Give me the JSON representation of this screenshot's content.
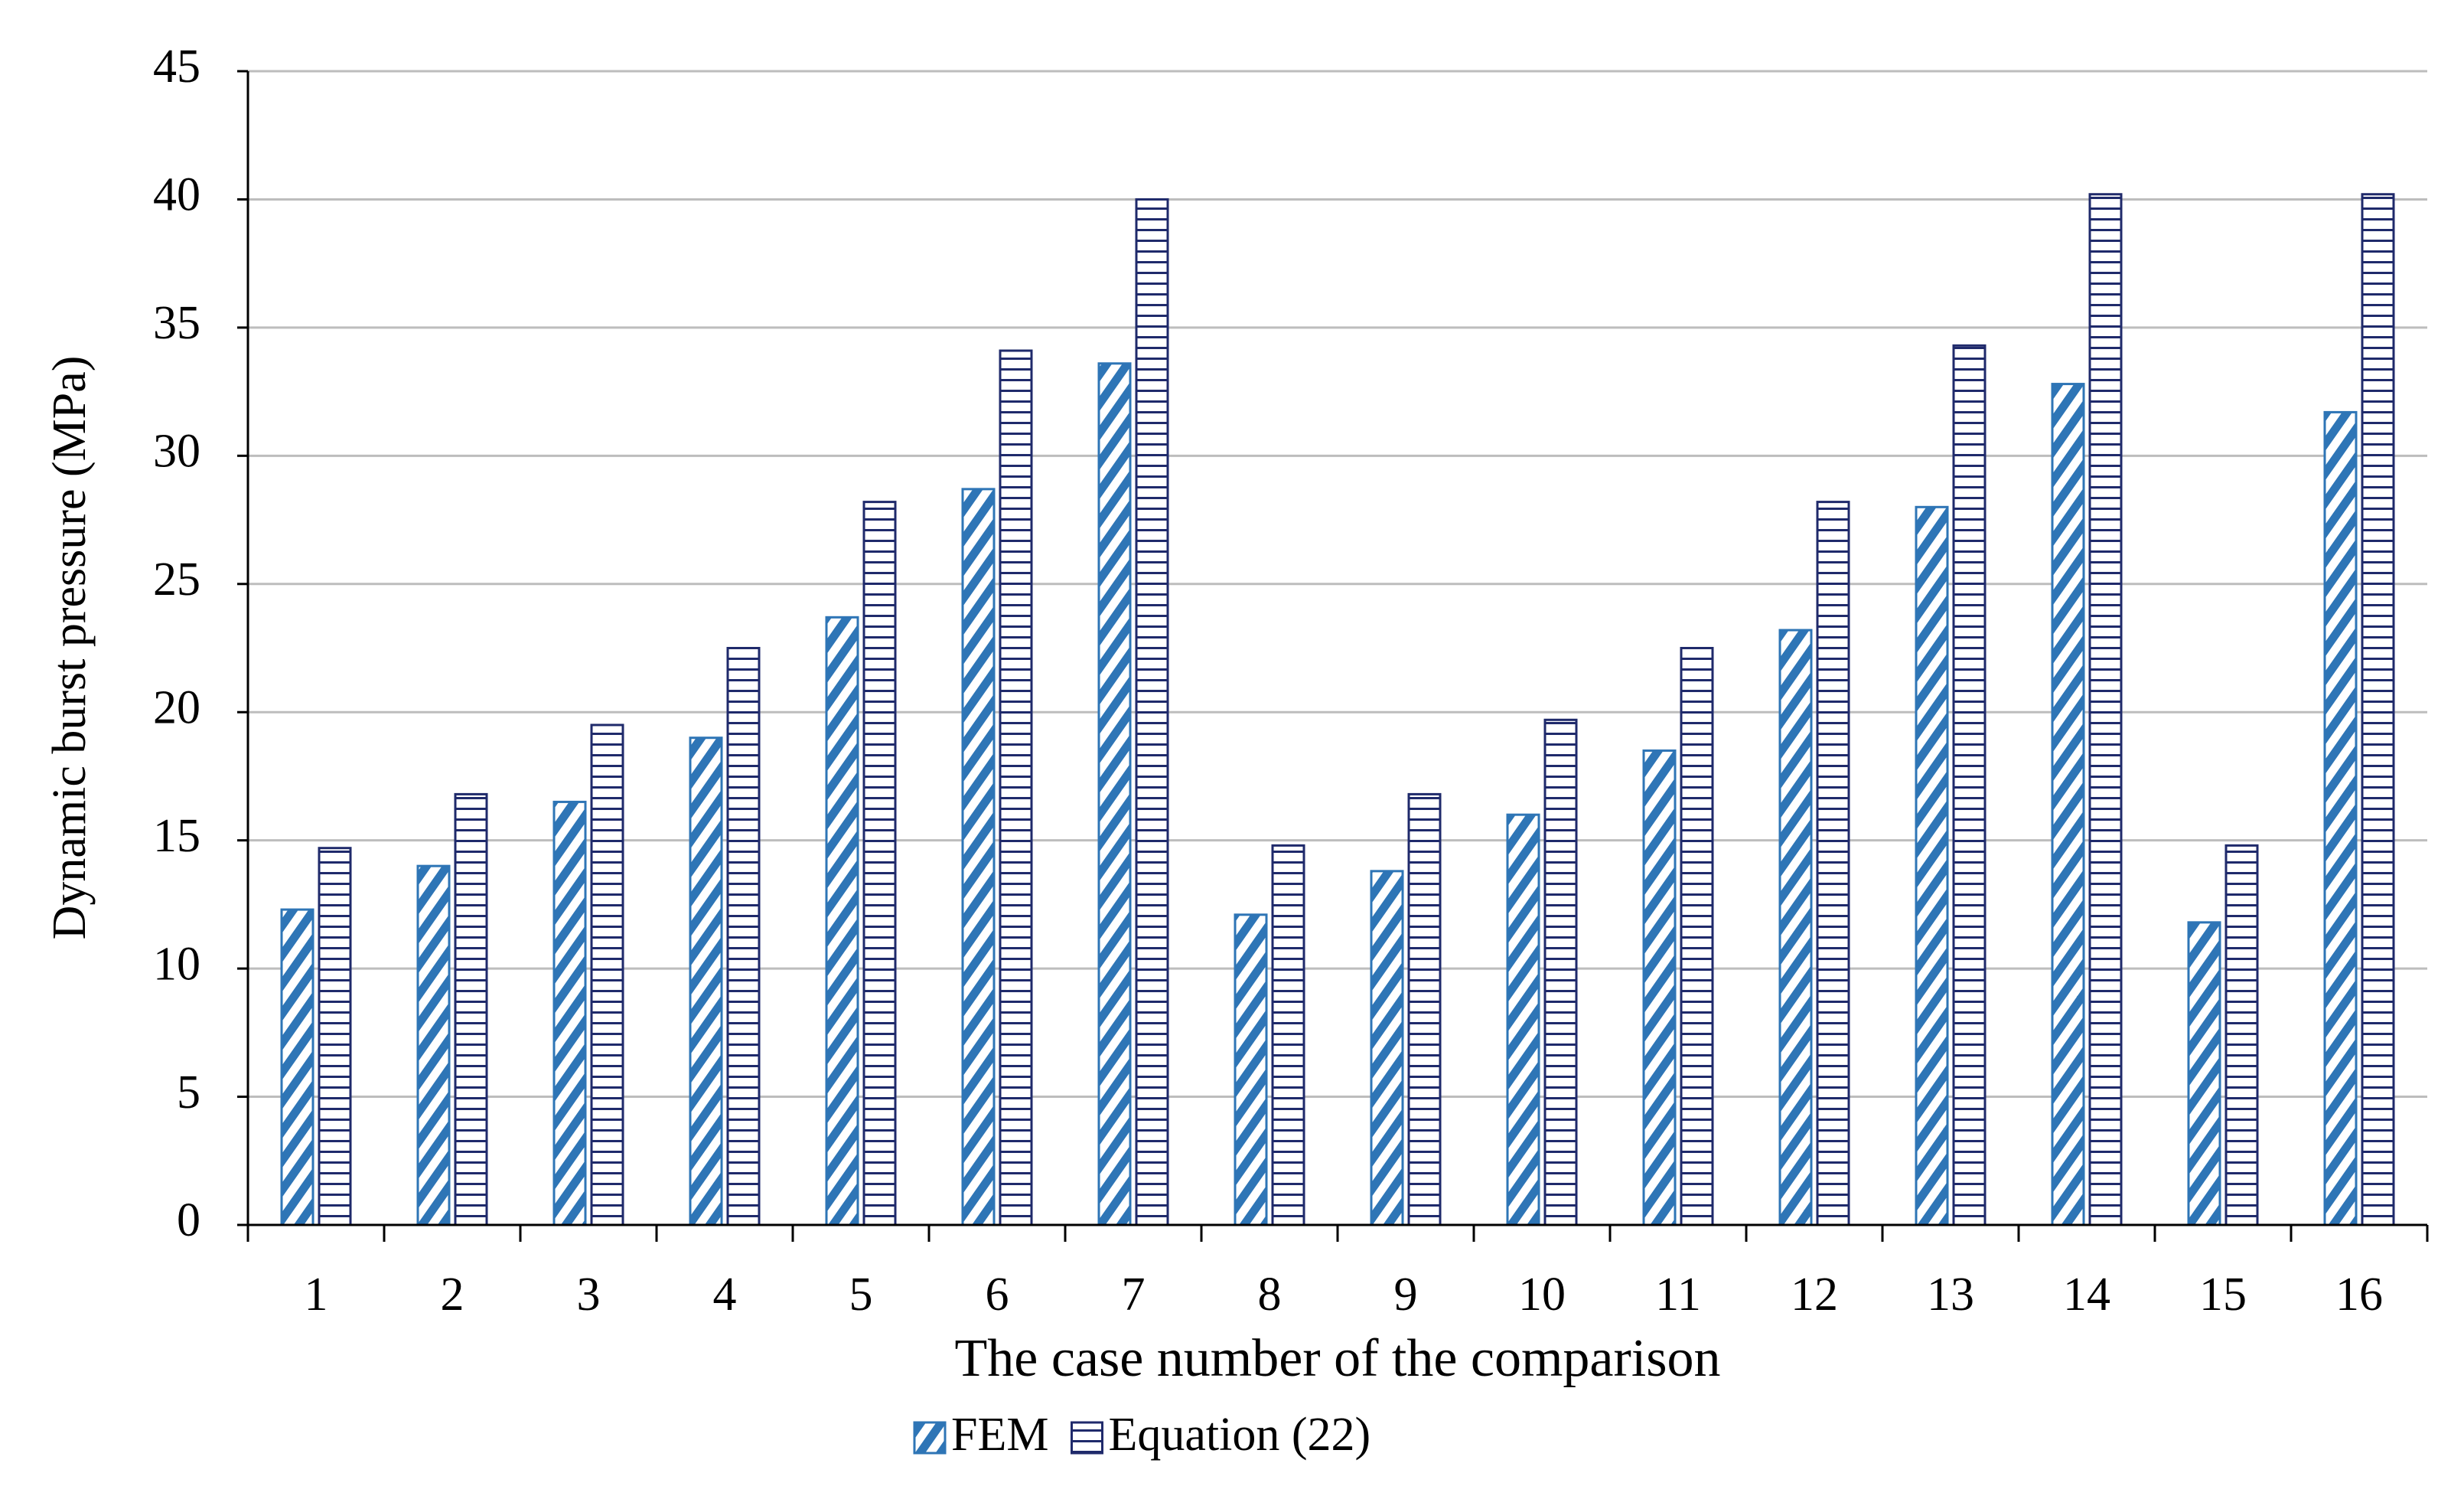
{
  "chart_data": {
    "type": "bar",
    "x_label": "The case number of the comparison",
    "y_label": "Dynamic burst pressure (MPa)",
    "categories": [
      "1",
      "2",
      "3",
      "4",
      "5",
      "6",
      "7",
      "8",
      "9",
      "10",
      "11",
      "12",
      "13",
      "14",
      "15",
      "16"
    ],
    "series": [
      {
        "name": "FEM",
        "color": "#2e75b6",
        "values": [
          12.3,
          14.0,
          16.5,
          19.0,
          23.7,
          28.7,
          33.6,
          12.1,
          13.8,
          16.0,
          18.5,
          23.2,
          28.0,
          32.8,
          11.8,
          31.7
        ]
      },
      {
        "name": "Equation (22)",
        "color": "#1f2a6b",
        "values": [
          14.7,
          16.8,
          19.5,
          22.5,
          28.2,
          34.1,
          40.0,
          14.8,
          16.8,
          19.7,
          22.5,
          28.2,
          34.3,
          40.2,
          14.8,
          40.2
        ]
      }
    ],
    "ylim": [
      0,
      45
    ],
    "yticks": [
      0,
      5,
      10,
      15,
      20,
      25,
      30,
      35,
      40,
      45
    ],
    "grid": true
  }
}
